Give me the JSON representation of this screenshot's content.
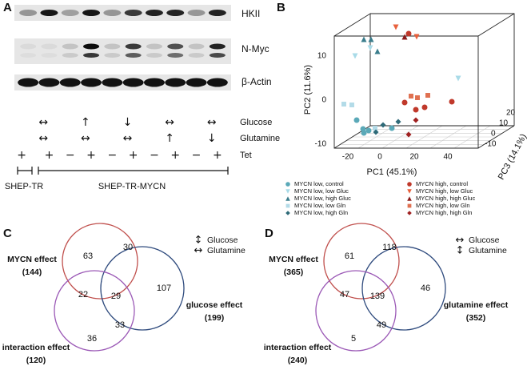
{
  "panel_a": {
    "label": "A",
    "blot_labels": [
      "HKII",
      "N-Myc",
      "β-Actin"
    ],
    "rows": [
      {
        "name": "Glucose",
        "symbols": [
          "↔",
          "↑",
          "↓",
          "↔",
          "↔"
        ]
      },
      {
        "name": "Glutamine",
        "symbols": [
          "↔",
          "↔",
          "↔",
          "↑",
          "↓"
        ]
      },
      {
        "name": "Tet",
        "symbols": [
          "+",
          "+",
          "−",
          "+",
          "−",
          "+",
          "−",
          "+",
          "−",
          "+"
        ]
      }
    ],
    "cell_lines": [
      "SHEP-TR",
      "SHEP-TR-MYCN"
    ]
  },
  "panel_b": {
    "label": "B",
    "axes": {
      "x": {
        "title": "PC1 (45.1%)",
        "ticks": [
          "-20",
          "0",
          "20",
          "40"
        ]
      },
      "y": {
        "title": "PC2 (11.6%)",
        "ticks": [
          "10",
          "0",
          "-10"
        ]
      },
      "z": {
        "title": "PC3 (14.1%)",
        "ticks": [
          "-10",
          "0",
          "10",
          "20"
        ]
      }
    },
    "legend": [
      {
        "name": "MYCN low, control",
        "color": "#5aa9b8"
      },
      {
        "name": "MYCN low, low Gluc",
        "color": "#a9dbe8"
      },
      {
        "name": "MYCN low, high Gluc",
        "color": "#3a7d8c"
      },
      {
        "name": "MYCN low, low Gln",
        "color": "#b3dbe8"
      },
      {
        "name": "MYCN low, high Gln",
        "color": "#2e6a78"
      },
      {
        "name": "MYCN high, control",
        "color": "#c0392b"
      },
      {
        "name": "MYCN high, low Gluc",
        "color": "#e8603c"
      },
      {
        "name": "MYCN high, high Gluc",
        "color": "#8b1a1a"
      },
      {
        "name": "MYCN high, low Gln",
        "color": "#e07050"
      },
      {
        "name": "MYCN high, high Gln",
        "color": "#a02020"
      }
    ]
  },
  "panel_c": {
    "label": "C",
    "sets": [
      {
        "name": "MYCN effect",
        "count": "(144)",
        "color": "#c0504d"
      },
      {
        "name": "glucose effect",
        "count": "(199)",
        "color": "#2e4a7d"
      },
      {
        "name": "interaction effect",
        "count": "(120)",
        "color": "#9b59b6"
      }
    ],
    "regions": [
      "63",
      "30",
      "107",
      "22",
      "29",
      "33",
      "36"
    ],
    "key": [
      {
        "symbol": "↕",
        "name": "Glucose"
      },
      {
        "symbol": "↔",
        "name": "Glutamine"
      }
    ]
  },
  "panel_d": {
    "label": "D",
    "sets": [
      {
        "name": "MYCN effect",
        "count": "(365)",
        "color": "#c0504d"
      },
      {
        "name": "glutamine effect",
        "count": "(352)",
        "color": "#2e4a7d"
      },
      {
        "name": "interaction effect",
        "count": "(240)",
        "color": "#9b59b6"
      }
    ],
    "regions": [
      "61",
      "118",
      "46",
      "47",
      "139",
      "49",
      "5"
    ],
    "key": [
      {
        "symbol": "↔",
        "name": "Glucose"
      },
      {
        "symbol": "↕",
        "name": "Glutamine"
      }
    ]
  }
}
